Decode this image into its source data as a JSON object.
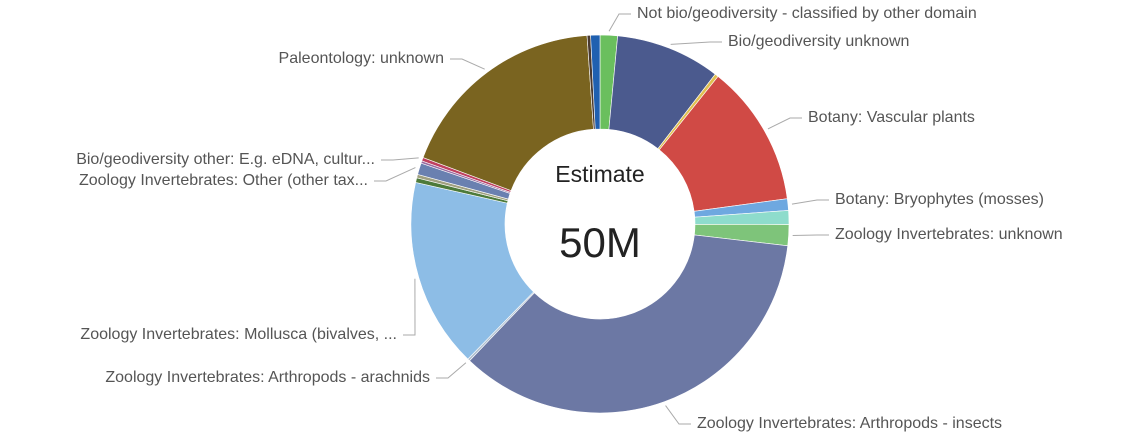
{
  "chart_data": {
    "type": "donut",
    "center_label": "Estimate",
    "center_value": "50M",
    "categories": [
      "Not bio/geodiversity - classified by other domain",
      "Bio/geodiversity unknown",
      null,
      "Botany: Vascular plants",
      "Botany: Bryophytes (mosses)",
      null,
      "Zoology Invertebrates: unknown",
      "Zoology Invertebrates: Arthropods - insects",
      "Zoology Invertebrates: Arthropods - arachnids",
      "Zoology Invertebrates: Mollusca (bivalves, ...",
      null,
      null,
      "Zoology Invertebrates: Other (other tax...",
      null,
      "Bio/geodiversity other: E.g. eDNA, cultur...",
      "Paleontology: unknown",
      null,
      null
    ],
    "values": [
      1.5,
      9.0,
      0.3,
      12.2,
      1.0,
      1.2,
      1.8,
      35.5,
      0.2,
      16.3,
      0.4,
      0.3,
      1.0,
      0.2,
      0.3,
      18.3,
      0.3,
      0.8
    ],
    "colors": [
      "#6abf5e",
      "#4b5a8e",
      "#e0c050",
      "#d04a45",
      "#6ea8e0",
      "#8edccc",
      "#7ec47a",
      "#6c78a4",
      "#b0c0d0",
      "#8dbde6",
      "#4d7a3a",
      "#a0a080",
      "#6a80b0",
      "#9a6aa0",
      "#c04060",
      "#7a6420",
      "#4a3a30",
      "#2060b0"
    ]
  }
}
